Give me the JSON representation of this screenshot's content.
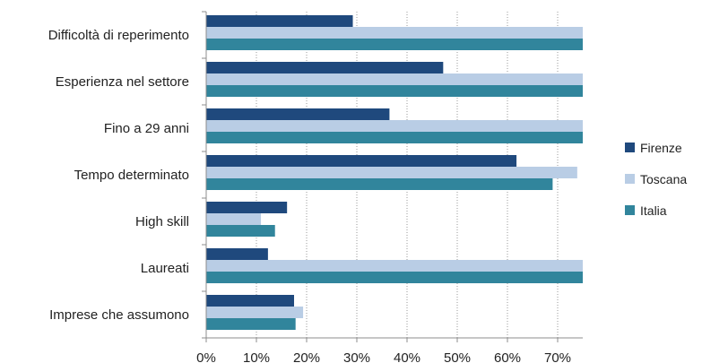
{
  "chart_data": {
    "type": "bar",
    "orientation": "horizontal",
    "categories": [
      "Difficoltà di reperimento",
      "Esperienza nel settore",
      "Fino a 29 anni",
      "Tempo determinato",
      "High skill",
      "Laureati",
      "Imprese che assumono"
    ],
    "series": [
      {
        "name": "Firenze",
        "color": "#1f497d",
        "values": [
          29.2,
          47.2,
          36.5,
          61.8,
          16.1,
          12.3,
          17.5
        ]
      },
      {
        "name": "Toscana",
        "color": "#b9cde5",
        "values": [
          75,
          75,
          75,
          73.9,
          10.9,
          75,
          19.3
        ]
      },
      {
        "name": "Italia",
        "color": "#31859c",
        "values": [
          75,
          75,
          75,
          69.0,
          13.7,
          75,
          17.8
        ]
      }
    ],
    "xlim": [
      0,
      75
    ],
    "xticks": [
      "0%",
      "10%",
      "20%",
      "30%",
      "40%",
      "50%",
      "60%",
      "70%"
    ],
    "xtick_values": [
      0,
      10,
      20,
      30,
      40,
      50,
      60,
      70
    ],
    "grid": "vertical-dotted",
    "legend_position": "right",
    "title": "",
    "xlabel": "",
    "ylabel": ""
  }
}
